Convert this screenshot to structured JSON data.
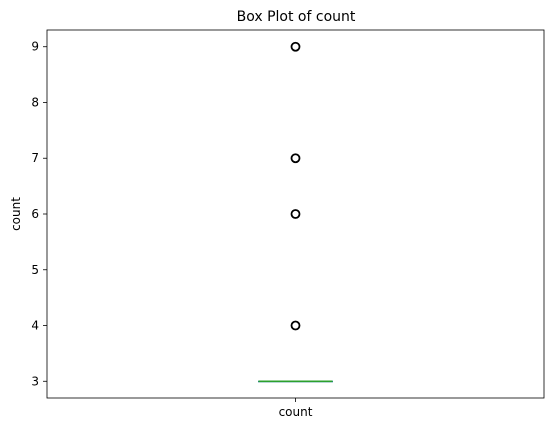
{
  "chart_data": {
    "type": "box",
    "title": "Box Plot of count",
    "xlabel": "",
    "ylabel": "count",
    "categories": [
      "count"
    ],
    "ylim": [
      2.7,
      9.3
    ],
    "yticks": [
      3,
      4,
      5,
      6,
      7,
      8,
      9
    ],
    "grid": false,
    "series": [
      {
        "category": "count",
        "min": 3,
        "q1": 3,
        "median": 3,
        "q3": 3,
        "max": 3,
        "outliers": [
          4,
          6,
          7,
          9
        ]
      }
    ],
    "colors": {
      "box": "#1f77b4",
      "median": "#2ca02c",
      "outlier": "#000000",
      "axis": "#000000"
    }
  }
}
